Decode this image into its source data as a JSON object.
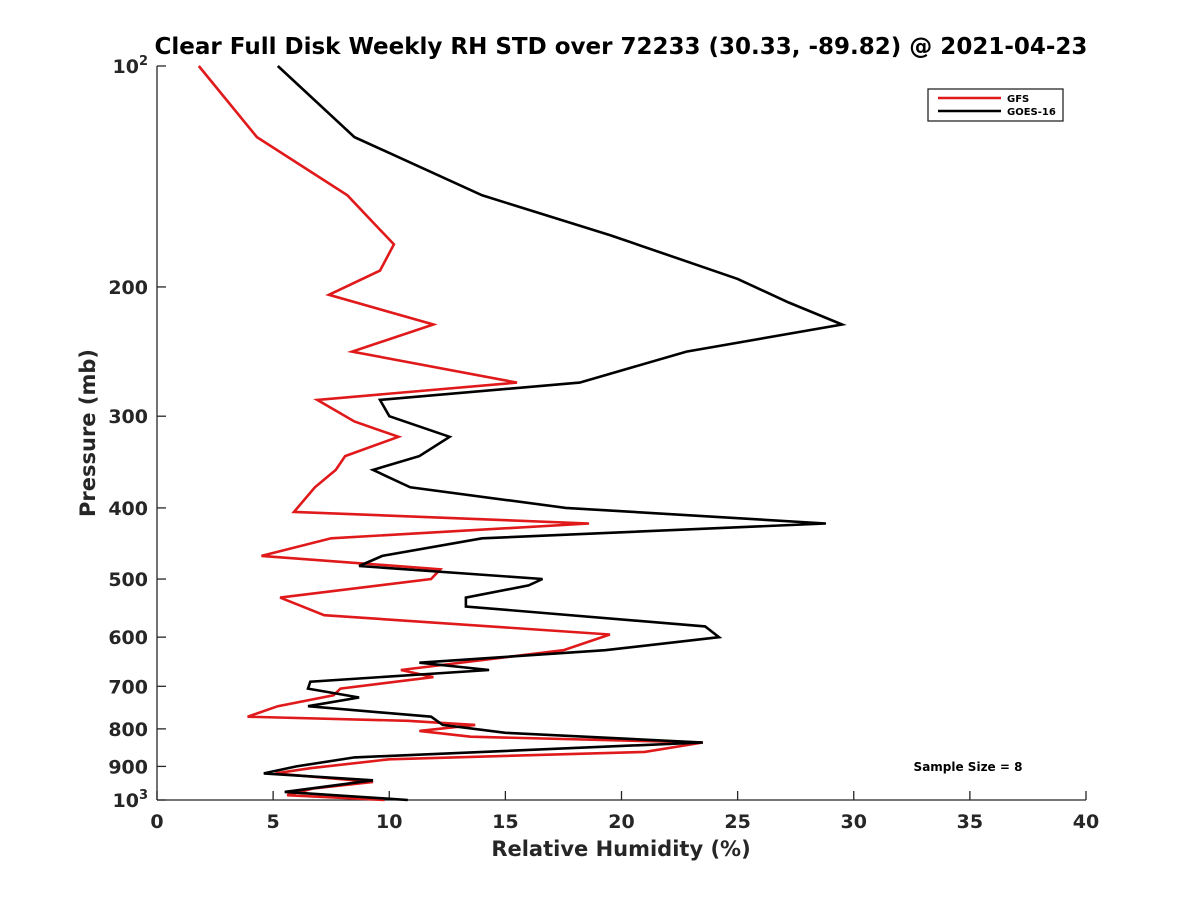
{
  "chart_data": {
    "type": "line",
    "title": "Clear Full Disk Weekly RH STD over 72233 (30.33, -89.82) @ 2021-04-23",
    "xlabel": "Relative Humidity (%)",
    "ylabel": "Pressure (mb)",
    "xlim": [
      0,
      40
    ],
    "ylim": [
      100,
      1000
    ],
    "yscale": "log",
    "y_reversed": true,
    "xticks": [
      0,
      5,
      10,
      15,
      20,
      25,
      30,
      35,
      40
    ],
    "yticks": [
      {
        "value": 100,
        "label": "10",
        "sup": "2"
      },
      {
        "value": 200,
        "label": "200",
        "sup": ""
      },
      {
        "value": 300,
        "label": "300",
        "sup": ""
      },
      {
        "value": 400,
        "label": "400",
        "sup": ""
      },
      {
        "value": 500,
        "label": "500",
        "sup": ""
      },
      {
        "value": 600,
        "label": "600",
        "sup": ""
      },
      {
        "value": 700,
        "label": "700",
        "sup": ""
      },
      {
        "value": 800,
        "label": "800",
        "sup": ""
      },
      {
        "value": 900,
        "label": "900",
        "sup": ""
      },
      {
        "value": 1000,
        "label": "10",
        "sup": "3"
      }
    ],
    "grid": false,
    "legend_position": "top-right",
    "annotation": "Sample Size = 8",
    "series": [
      {
        "name": "GFS",
        "color": "#e0191b",
        "points": [
          [
            1.8,
            100
          ],
          [
            4.3,
            125
          ],
          [
            8.2,
            150
          ],
          [
            10.2,
            175
          ],
          [
            9.6,
            190
          ],
          [
            7.4,
            205
          ],
          [
            11.9,
            225
          ],
          [
            8.4,
            245
          ],
          [
            15.5,
            270
          ],
          [
            6.9,
            285
          ],
          [
            8.5,
            305
          ],
          [
            10.4,
            320
          ],
          [
            8.1,
            340
          ],
          [
            7.7,
            355
          ],
          [
            6.8,
            375
          ],
          [
            5.9,
            405
          ],
          [
            18.6,
            420
          ],
          [
            7.5,
            440
          ],
          [
            4.5,
            465
          ],
          [
            12.2,
            485
          ],
          [
            11.8,
            500
          ],
          [
            5.3,
            530
          ],
          [
            7.2,
            560
          ],
          [
            19.5,
            595
          ],
          [
            17.5,
            625
          ],
          [
            10.5,
            665
          ],
          [
            11.9,
            680
          ],
          [
            7.9,
            705
          ],
          [
            7.6,
            720
          ],
          [
            5.2,
            745
          ],
          [
            3.9,
            770
          ],
          [
            10.8,
            780
          ],
          [
            13.7,
            790
          ],
          [
            11.3,
            805
          ],
          [
            13.5,
            820
          ],
          [
            23.5,
            835
          ],
          [
            21.0,
            860
          ],
          [
            10.0,
            880
          ],
          [
            6.6,
            905
          ],
          [
            5.1,
            920
          ],
          [
            9.3,
            945
          ],
          [
            6.7,
            965
          ],
          [
            5.6,
            985
          ],
          [
            9.8,
            1000
          ]
        ]
      },
      {
        "name": "GOES-16",
        "color": "#000000",
        "points": [
          [
            5.2,
            100
          ],
          [
            8.5,
            125
          ],
          [
            14.0,
            150
          ],
          [
            19.5,
            170
          ],
          [
            25.0,
            195
          ],
          [
            27.2,
            210
          ],
          [
            29.5,
            225
          ],
          [
            22.8,
            245
          ],
          [
            18.2,
            270
          ],
          [
            9.6,
            285
          ],
          [
            10.0,
            300
          ],
          [
            12.6,
            320
          ],
          [
            11.3,
            340
          ],
          [
            9.3,
            355
          ],
          [
            10.9,
            375
          ],
          [
            17.6,
            400
          ],
          [
            28.8,
            420
          ],
          [
            14.0,
            440
          ],
          [
            9.7,
            465
          ],
          [
            8.7,
            480
          ],
          [
            16.6,
            500
          ],
          [
            16.0,
            510
          ],
          [
            13.3,
            530
          ],
          [
            13.3,
            545
          ],
          [
            23.6,
            580
          ],
          [
            24.2,
            600
          ],
          [
            19.3,
            625
          ],
          [
            11.3,
            650
          ],
          [
            14.3,
            665
          ],
          [
            6.6,
            690
          ],
          [
            6.5,
            705
          ],
          [
            8.7,
            725
          ],
          [
            6.5,
            745
          ],
          [
            11.8,
            770
          ],
          [
            12.3,
            790
          ],
          [
            15.0,
            810
          ],
          [
            23.5,
            835
          ],
          [
            8.5,
            875
          ],
          [
            6.0,
            900
          ],
          [
            4.6,
            920
          ],
          [
            9.3,
            940
          ],
          [
            5.5,
            975
          ],
          [
            10.8,
            1000
          ]
        ]
      }
    ]
  }
}
